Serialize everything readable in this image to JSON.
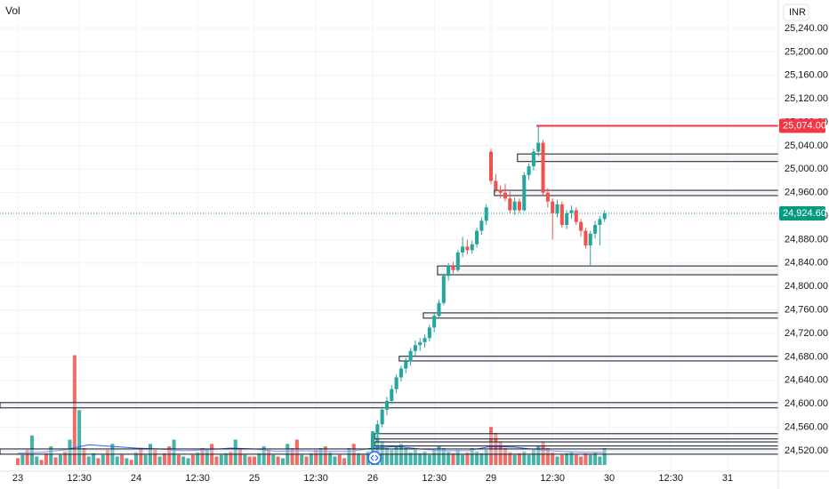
{
  "chart_data": {
    "type": "candlestick",
    "volume_label": "Vol",
    "currency": "INR",
    "grid": true,
    "up_color": "#26a69a",
    "down_color": "#ef5350",
    "xlim": [
      -3.76,
      160.71
    ],
    "xticks": [
      {
        "value": 0,
        "label": "23"
      },
      {
        "value": 13,
        "label": "12:30"
      },
      {
        "value": 25,
        "label": "24"
      },
      {
        "value": 38,
        "label": "12:30"
      },
      {
        "value": 50,
        "label": "25"
      },
      {
        "value": 63,
        "label": "12:30"
      },
      {
        "value": 75,
        "label": "26"
      },
      {
        "value": 88,
        "label": "12:30"
      },
      {
        "value": 100,
        "label": "29"
      },
      {
        "value": 113,
        "label": "12:30"
      },
      {
        "value": 125,
        "label": "30"
      },
      {
        "value": 138,
        "label": "12:30"
      },
      {
        "value": 150,
        "label": "31"
      }
    ],
    "ylim": [
      24485,
      25288.5
    ],
    "yticks": [
      {
        "value": 24520,
        "label": "24,520.00"
      },
      {
        "value": 24560,
        "label": "24,560.00"
      },
      {
        "value": 24600,
        "label": "24,600.00"
      },
      {
        "value": 24640,
        "label": "24,640.00"
      },
      {
        "value": 24680,
        "label": "24,680.00"
      },
      {
        "value": 24720,
        "label": "24,720.00"
      },
      {
        "value": 24760,
        "label": "24,760.00"
      },
      {
        "value": 24800,
        "label": "24,800.00"
      },
      {
        "value": 24840,
        "label": "24,840.00"
      },
      {
        "value": 24880,
        "label": "24,880.00"
      },
      {
        "value": 24920,
        "label": "24,920.00"
      },
      {
        "value": 24960,
        "label": "24,960.00"
      },
      {
        "value": 25000,
        "label": "25,000.00"
      },
      {
        "value": 25040,
        "label": "25,040.00"
      },
      {
        "value": 25080,
        "label": "25,080.00"
      },
      {
        "value": 25120,
        "label": "25,120.00"
      },
      {
        "value": 25160,
        "label": "25,160.00"
      },
      {
        "value": 25200,
        "label": "25,200.00"
      },
      {
        "value": 25240,
        "label": "25,240.00"
      }
    ],
    "candles": {
      "x": [
        75,
        76,
        77,
        78,
        79,
        80,
        81,
        82,
        83,
        84,
        85,
        86,
        87,
        88,
        89,
        90,
        91,
        92,
        93,
        94,
        95,
        96,
        97,
        98,
        99,
        100,
        101,
        102,
        103,
        104,
        105,
        106,
        107,
        108,
        109,
        110,
        111,
        112,
        113,
        114,
        115,
        116,
        117,
        118,
        119,
        120,
        121,
        122,
        123,
        124
      ],
      "ohlc": [
        [
          24525,
          24552,
          24518,
          24548
        ],
        [
          24548,
          24572,
          24540,
          24565
        ],
        [
          24565,
          24595,
          24560,
          24590
        ],
        [
          24590,
          24612,
          24580,
          24605
        ],
        [
          24605,
          24632,
          24600,
          24625
        ],
        [
          24625,
          24650,
          24618,
          24645
        ],
        [
          24645,
          24665,
          24638,
          24660
        ],
        [
          24660,
          24678,
          24652,
          24672
        ],
        [
          24672,
          24695,
          24665,
          24690
        ],
        [
          24690,
          24708,
          24682,
          24700
        ],
        [
          24700,
          24712,
          24690,
          24705
        ],
        [
          24705,
          24718,
          24696,
          24712
        ],
        [
          24712,
          24735,
          24706,
          24730
        ],
        [
          24730,
          24755,
          24722,
          24750
        ],
        [
          24750,
          24778,
          24745,
          24772
        ],
        [
          24772,
          24822,
          24768,
          24818
        ],
        [
          24818,
          24840,
          24810,
          24835
        ],
        [
          24835,
          24842,
          24822,
          24828
        ],
        [
          24828,
          24862,
          24825,
          24858
        ],
        [
          24858,
          24885,
          24850,
          24868
        ],
        [
          24868,
          24880,
          24855,
          24862
        ],
        [
          24862,
          24878,
          24856,
          24872
        ],
        [
          24872,
          24900,
          24866,
          24895
        ],
        [
          24895,
          24918,
          24888,
          24912
        ],
        [
          24912,
          24940,
          24905,
          24935
        ],
        [
          25030,
          25035,
          24975,
          24980
        ],
        [
          24980,
          24992,
          24960,
          24965
        ],
        [
          24965,
          24972,
          24950,
          24960
        ],
        [
          24960,
          24975,
          24945,
          24950
        ],
        [
          24950,
          24962,
          24925,
          24930
        ],
        [
          24930,
          24952,
          24922,
          24945
        ],
        [
          24945,
          24950,
          24925,
          24930
        ],
        [
          24930,
          24995,
          24928,
          24990
        ],
        [
          24990,
          25010,
          24982,
          25005
        ],
        [
          25005,
          25035,
          24998,
          25030
        ],
        [
          25030,
          25074,
          25022,
          25045
        ],
        [
          25045,
          25050,
          24955,
          24960
        ],
        [
          24960,
          24968,
          24935,
          24945
        ],
        [
          24945,
          24950,
          24880,
          24925
        ],
        [
          24925,
          24948,
          24918,
          24940
        ],
        [
          24940,
          24945,
          24900,
          24905
        ],
        [
          24905,
          24930,
          24898,
          24925
        ],
        [
          24925,
          24938,
          24915,
          24930
        ],
        [
          24930,
          24935,
          24905,
          24910
        ],
        [
          24910,
          24915,
          24885,
          24895
        ],
        [
          24895,
          24900,
          24865,
          24870
        ],
        [
          24870,
          24895,
          24835,
          24890
        ],
        [
          24890,
          24912,
          24882,
          24905
        ],
        [
          24905,
          24920,
          24870,
          24915
        ],
        [
          24915,
          24930,
          24910,
          24924.6
        ]
      ]
    },
    "volume": {
      "vlim": [
        0,
        140
      ],
      "x": [
        0,
        1,
        2,
        3,
        4,
        5,
        6,
        7,
        8,
        9,
        10,
        11,
        12,
        13,
        14,
        15,
        16,
        17,
        18,
        19,
        20,
        21,
        22,
        23,
        24,
        25,
        26,
        27,
        28,
        29,
        30,
        31,
        32,
        33,
        34,
        35,
        36,
        37,
        38,
        39,
        40,
        41,
        42,
        43,
        44,
        45,
        46,
        47,
        48,
        49,
        50,
        51,
        52,
        53,
        54,
        55,
        56,
        57,
        58,
        59,
        60,
        61,
        62,
        63,
        64,
        65,
        66,
        67,
        68,
        69,
        70,
        71,
        72,
        73,
        74,
        75,
        76,
        77,
        78,
        79,
        80,
        81,
        82,
        83,
        84,
        85,
        86,
        87,
        88,
        89,
        90,
        91,
        92,
        93,
        94,
        95,
        96,
        97,
        98,
        99,
        100,
        101,
        102,
        103,
        104,
        105,
        106,
        107,
        108,
        109,
        110,
        111,
        112,
        113,
        114,
        115,
        116,
        117,
        118,
        119,
        120,
        121,
        122,
        123,
        124
      ],
      "values": [
        8,
        12,
        18,
        35,
        10,
        6,
        14,
        22,
        9,
        12,
        16,
        30,
        130,
        65,
        20,
        10,
        14,
        8,
        12,
        18,
        25,
        10,
        12,
        8,
        6,
        15,
        20,
        12,
        25,
        18,
        10,
        14,
        22,
        30,
        12,
        10,
        8,
        12,
        15,
        20,
        18,
        25,
        10,
        12,
        14,
        16,
        30,
        20,
        12,
        10,
        10,
        14,
        22,
        18,
        12,
        10,
        8,
        25,
        20,
        30,
        12,
        10,
        14,
        18,
        20,
        22,
        15,
        10,
        12,
        8,
        20,
        25,
        14,
        12,
        16,
        40,
        35,
        28,
        20,
        18,
        22,
        25,
        20,
        15,
        18,
        14,
        16,
        12,
        18,
        22,
        20,
        16,
        14,
        18,
        12,
        15,
        20,
        16,
        14,
        18,
        45,
        38,
        28,
        20,
        15,
        12,
        14,
        16,
        12,
        18,
        22,
        28,
        20,
        15,
        10,
        12,
        14,
        16,
        12,
        10,
        14,
        12,
        15,
        10,
        20
      ],
      "colors": [
        "#ef5350",
        "#26a69a",
        "#ef5350",
        "#26a69a",
        "#26a69a",
        "#ef5350",
        "#ef5350",
        "#26a69a",
        "#ef5350",
        "#26a69a",
        "#ef5350",
        "#26a69a",
        "#ef5350",
        "#26a69a",
        "#ef5350",
        "#26a69a",
        "#26a69a",
        "#ef5350",
        "#26a69a",
        "#ef5350",
        "#26a69a",
        "#26a69a",
        "#ef5350",
        "#26a69a",
        "#ef5350",
        "#26a69a",
        "#ef5350",
        "#26a69a",
        "#26a69a",
        "#ef5350",
        "#26a69a",
        "#ef5350",
        "#ef5350",
        "#26a69a",
        "#ef5350",
        "#26a69a",
        "#26a69a",
        "#ef5350",
        "#26a69a",
        "#ef5350",
        "#26a69a",
        "#ef5350",
        "#ef5350",
        "#26a69a",
        "#26a69a",
        "#ef5350",
        "#26a69a",
        "#ef5350",
        "#26a69a",
        "#ef5350",
        "#ef5350",
        "#26a69a",
        "#26a69a",
        "#ef5350",
        "#26a69a",
        "#ef5350",
        "#26a69a",
        "#26a69a",
        "#ef5350",
        "#ef5350",
        "#26a69a",
        "#ef5350",
        "#26a69a",
        "#ef5350",
        "#26a69a",
        "#ef5350",
        "#26a69a",
        "#26a69a",
        "#ef5350",
        "#ef5350",
        "#26a69a",
        "#ef5350",
        "#26a69a",
        "#ef5350",
        "#26a69a",
        "#26a69a",
        "#26a69a",
        "#26a69a",
        "#26a69a",
        "#26a69a",
        "#26a69a",
        "#26a69a",
        "#26a69a",
        "#26a69a",
        "#26a69a",
        "#26a69a",
        "#26a69a",
        "#26a69a",
        "#26a69a",
        "#26a69a",
        "#26a69a",
        "#26a69a",
        "#ef5350",
        "#26a69a",
        "#26a69a",
        "#ef5350",
        "#26a69a",
        "#26a69a",
        "#26a69a",
        "#26a69a",
        "#ef5350",
        "#ef5350",
        "#ef5350",
        "#ef5350",
        "#ef5350",
        "#26a69a",
        "#ef5350",
        "#26a69a",
        "#26a69a",
        "#26a69a",
        "#26a69a",
        "#ef5350",
        "#ef5350",
        "#ef5350",
        "#26a69a",
        "#ef5350",
        "#26a69a",
        "#26a69a",
        "#ef5350",
        "#ef5350",
        "#ef5350",
        "#26a69a",
        "#26a69a",
        "#26a69a",
        "#26a69a"
      ],
      "ma": {
        "color": "#2962ff",
        "x": [
          0,
          5,
          10,
          15,
          20,
          25,
          30,
          35,
          40,
          45,
          50,
          55,
          60,
          65,
          70,
          75,
          80,
          85,
          90,
          95,
          100,
          105,
          110,
          115,
          120,
          124
        ],
        "values": [
          14,
          15,
          18,
          24,
          22,
          20,
          19,
          17,
          18,
          20,
          19,
          16,
          17,
          16,
          16,
          20,
          22,
          19,
          17,
          17,
          22,
          21,
          18,
          16,
          15,
          15
        ]
      }
    },
    "zone_color": "#131722",
    "zones": [
      {
        "from": 105.6,
        "low": 25013,
        "high": 25026
      },
      {
        "from": 100.7,
        "low": 24955,
        "high": 24964
      },
      {
        "from": 88.7,
        "low": 24820,
        "high": 24835
      },
      {
        "from": 85.7,
        "low": 24746,
        "high": 24755
      },
      {
        "from": 80.6,
        "low": 24673,
        "high": 24681
      },
      {
        "from": -3.76,
        "low": 24593,
        "high": 24602
      },
      {
        "from": 75.4,
        "low": 24540,
        "high": 24549
      },
      {
        "from": 75.4,
        "low": 24528,
        "high": 24535
      },
      {
        "from": -3.76,
        "low": 24514,
        "high": 24523
      }
    ],
    "high_line": {
      "from": 109.6,
      "value": 25074,
      "label": "25,074.00",
      "color": "#f23645"
    },
    "last_price": {
      "value": 24924.6,
      "label": "24,924.60",
      "color": "#089981"
    }
  }
}
